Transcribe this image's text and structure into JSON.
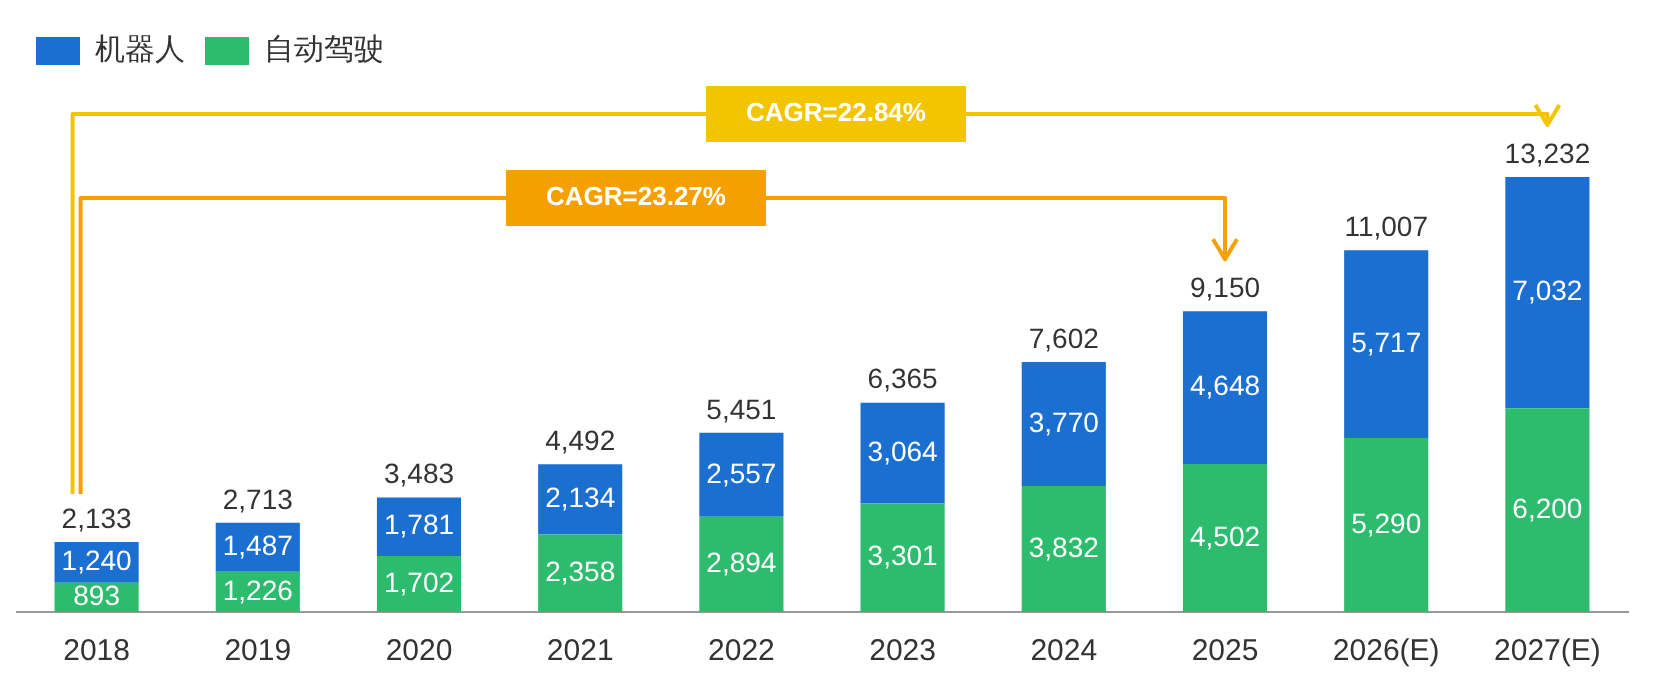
{
  "chart_data": {
    "type": "bar",
    "stacked": true,
    "legend": "top left",
    "categories": [
      "2018",
      "2019",
      "2020",
      "2021",
      "2022",
      "2023",
      "2024",
      "2025",
      "2026(E)",
      "2027(E)"
    ],
    "series": [
      {
        "name": "自动驾驶",
        "color": "#2dbb6e",
        "values": [
          893,
          1226,
          1702,
          2358,
          2894,
          3301,
          3832,
          4502,
          5290,
          6200
        ],
        "value_labels": [
          "893",
          "1,226",
          "1,702",
          "2,358",
          "2,894",
          "3,301",
          "3,832",
          "4,502",
          "5,290",
          "6,200"
        ]
      },
      {
        "name": "机器人",
        "color": "#1a6fd1",
        "values": [
          1240,
          1487,
          1781,
          2134,
          2557,
          3064,
          3770,
          4648,
          5717,
          7032
        ],
        "value_labels": [
          "1,240",
          "1,487",
          "1,781",
          "2,134",
          "2,557",
          "3,064",
          "3,770",
          "4,648",
          "5,717",
          "7,032"
        ]
      }
    ],
    "totals": [
      "2,133",
      "2,713",
      "3,483",
      "4,492",
      "5,451",
      "6,365",
      "7,602",
      "9,150",
      "11,007",
      "13,232"
    ],
    "annotations": [
      "CAGR=22.84%",
      "CAGR=23.27%"
    ]
  }
}
